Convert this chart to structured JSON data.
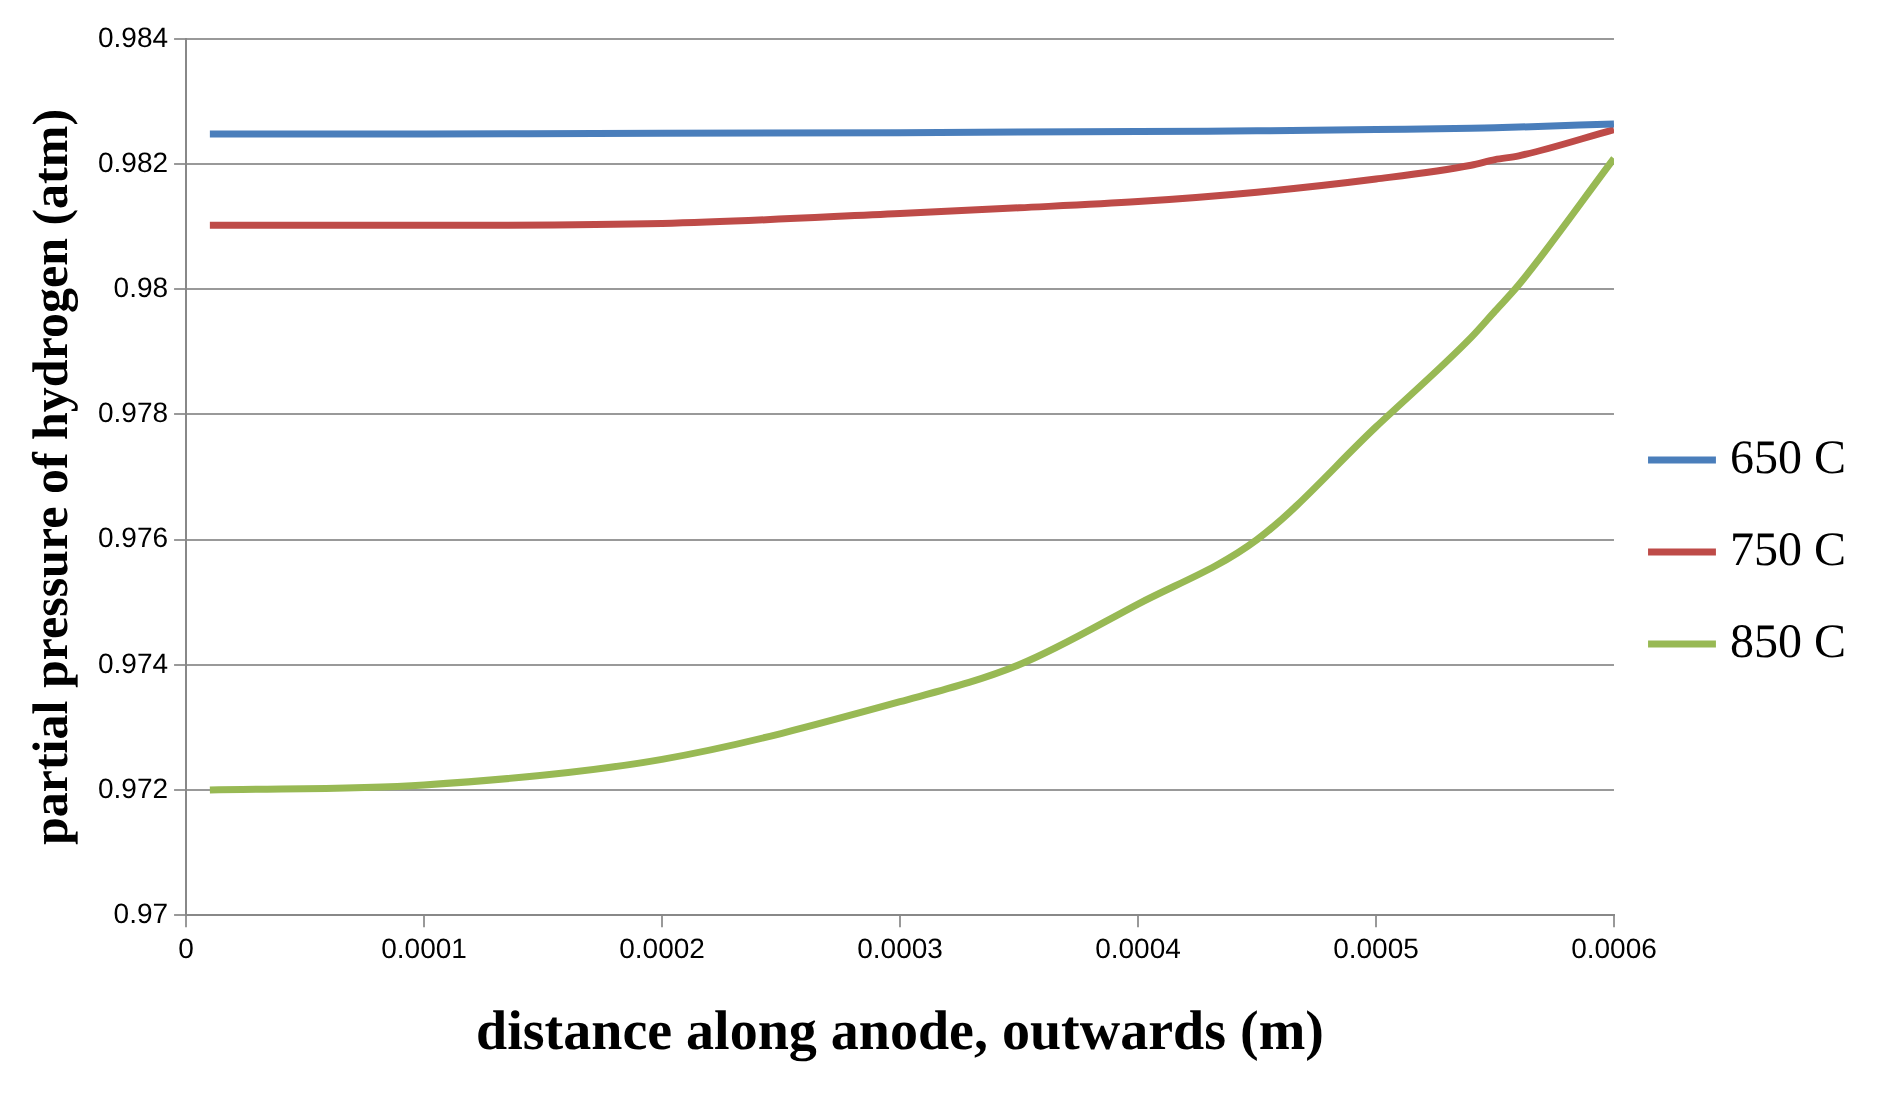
{
  "chart_data": {
    "type": "line",
    "xlabel": "distance along anode, outwards (m)",
    "ylabel": "partial pressure of hydrogen (atm)",
    "x": [
      1e-05,
      0.0001,
      0.0002,
      0.0003,
      0.00035,
      0.0004,
      0.00045,
      0.0005,
      0.00054,
      0.00055,
      0.00056,
      0.0006
    ],
    "series": [
      {
        "name": "650 C",
        "color": "#4a7ebb",
        "values": [
          0.98248,
          0.98248,
          0.98249,
          0.9825,
          0.98251,
          0.98252,
          0.98253,
          0.98255,
          0.98257,
          0.98258,
          0.98259,
          0.98264
        ]
      },
      {
        "name": "750 C",
        "color": "#be4b48",
        "values": [
          0.98102,
          0.98102,
          0.98105,
          0.98121,
          0.9813,
          0.9814,
          0.98155,
          0.98176,
          0.98198,
          0.98207,
          0.98213,
          0.98255
        ]
      },
      {
        "name": "850 C",
        "color": "#98b954",
        "values": [
          0.972,
          0.97208,
          0.97249,
          0.97341,
          0.974,
          0.97497,
          0.976,
          0.9778,
          0.97923,
          0.97965,
          0.98007,
          0.98209
        ]
      }
    ],
    "xlim": [
      0,
      0.0006
    ],
    "xticks": [
      0,
      0.0001,
      0.0002,
      0.0003,
      0.0004,
      0.0005,
      0.0006
    ],
    "ylim": [
      0.97,
      0.984
    ],
    "yticks": [
      0.97,
      0.972,
      0.974,
      0.976,
      0.978,
      0.98,
      0.982,
      0.984
    ],
    "grid": "y",
    "legend": "right",
    "marker": "none",
    "line_style": "solid"
  }
}
